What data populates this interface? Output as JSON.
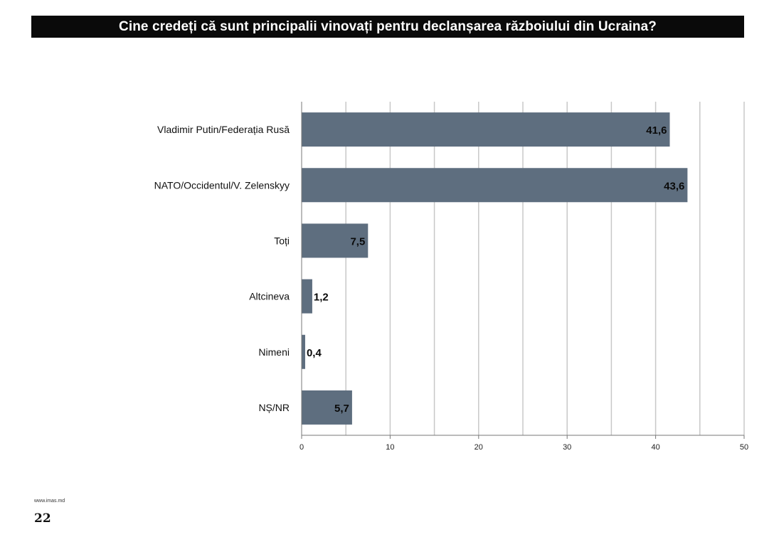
{
  "title": "Cine credeți că sunt principalii vinovați pentru declanșarea războiului din Ucraina?",
  "footer": {
    "url": "www.imas.md",
    "page_number": "22"
  },
  "colors": {
    "bar": "#5e6e7f",
    "grid": "#c8c8c8",
    "axis": "#777777",
    "title_bg": "#0a0a0a"
  },
  "chart_data": {
    "type": "bar",
    "orientation": "horizontal",
    "categories": [
      "Vladimir Putin/Federația Rusă",
      "NATO/Occidentul/V. Zelenskyy",
      "Toți",
      "Altcineva",
      "Nimeni",
      "NȘ/NR"
    ],
    "values": [
      41.6,
      43.6,
      7.5,
      1.2,
      0.4,
      5.7
    ],
    "value_labels": [
      "41,6",
      "43,6",
      "7,5",
      "1,2",
      "0,4",
      "5,7"
    ],
    "xlim": [
      0,
      50
    ],
    "x_ticks": [
      0,
      10,
      20,
      30,
      40,
      50
    ],
    "grid": true,
    "legend": "none"
  }
}
